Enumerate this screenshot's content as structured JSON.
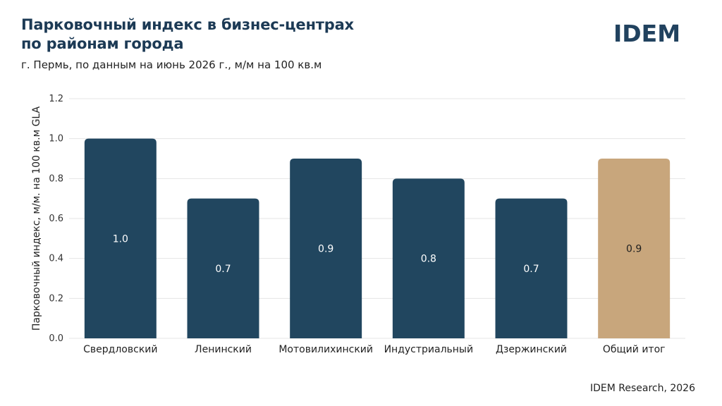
{
  "header": {
    "title_line1": "Парковочный индекс в бизнес-центрах",
    "title_line2": "по районам города",
    "subtitle": "г. Пермь, по данным на июнь 2026 г., м/м на 100 кв.м"
  },
  "logo": {
    "text": "IDEM",
    "color": "#21425f"
  },
  "footer": {
    "source": "IDEM Research, 2026"
  },
  "chart_data": {
    "type": "bar",
    "title": "Парковочный индекс в бизнес-центрах по районам города",
    "subtitle": "г. Пермь, по данным на июнь 2026 г., м/м на 100 кв.м",
    "xlabel": "",
    "ylabel": "Парковочный индекс, м/м. на 100 кв.м GLA",
    "ylim": [
      0,
      1.2
    ],
    "yticks": [
      "0.0",
      "0.2",
      "0.4",
      "0.6",
      "0.8",
      "1.0",
      "1.2"
    ],
    "grid": true,
    "categories": [
      "Свердловский",
      "Ленинский",
      "Мотовилихинский",
      "Индустриальный",
      "Дзержинский",
      "Общий итог"
    ],
    "values": [
      1.0,
      0.7,
      0.9,
      0.8,
      0.7,
      0.9
    ],
    "data_labels": [
      "1.0",
      "0.7",
      "0.9",
      "0.8",
      "0.7",
      "0.9"
    ],
    "colors": {
      "primary": "#21465f",
      "total": "#c8a67c",
      "grid": "#e4e4e4"
    },
    "highlight_index": 5
  }
}
